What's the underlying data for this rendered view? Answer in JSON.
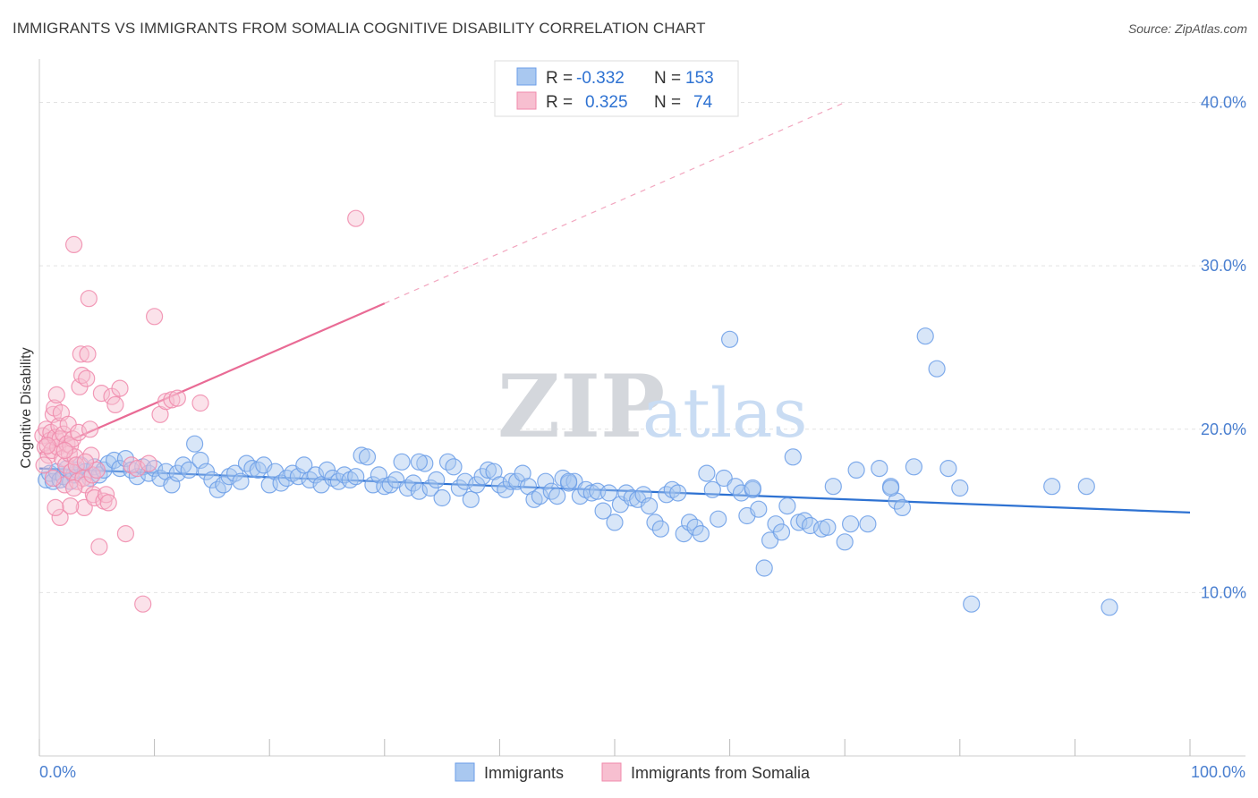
{
  "title": "IMMIGRANTS VS IMMIGRANTS FROM SOMALIA COGNITIVE DISABILITY CORRELATION CHART",
  "source": "Source: ZipAtlas.com",
  "watermark": {
    "bold": "ZIP",
    "light": "atlas"
  },
  "chart_data": {
    "type": "scatter",
    "title": "IMMIGRANTS VS IMMIGRANTS FROM SOMALIA COGNITIVE DISABILITY CORRELATION CHART",
    "xlabel": "",
    "ylabel": "Cognitive Disability",
    "xlim": [
      0,
      100
    ],
    "ylim": [
      0,
      42
    ],
    "x_tick_labels": {
      "min": "0.0%",
      "max": "100.0%"
    },
    "y_ticks": [
      {
        "value": 10,
        "label": "10.0%"
      },
      {
        "value": 20,
        "label": "20.0%"
      },
      {
        "value": 30,
        "label": "30.0%"
      },
      {
        "value": 40,
        "label": "40.0%"
      }
    ],
    "grid": true,
    "legend_position": "bottom-center",
    "stats": [
      {
        "r_label": "R =",
        "r": "-0.332",
        "n_label": "N =",
        "n": "153"
      },
      {
        "r_label": "R =",
        "r": "0.325",
        "n_label": "N =",
        "n": "74"
      }
    ],
    "series": [
      {
        "name": "Immigrants",
        "color": "#6b9ee8",
        "fill": "#a9c8f0",
        "line_color": "#2e72d2",
        "trend": {
          "x0": 0,
          "y0": 17.6,
          "x1": 100,
          "y1": 14.9
        },
        "points": [
          [
            0.6,
            16.9
          ],
          [
            0.9,
            17.3
          ],
          [
            1.2,
            16.8
          ],
          [
            1.5,
            17.4
          ],
          [
            1.8,
            16.9
          ],
          [
            2.1,
            17.1
          ],
          [
            2.4,
            17.6
          ],
          [
            2.7,
            16.8
          ],
          [
            3.0,
            17.2
          ],
          [
            3.3,
            17.5
          ],
          [
            3.6,
            17.8
          ],
          [
            4.0,
            17.4
          ],
          [
            4.4,
            17.0
          ],
          [
            4.8,
            17.7
          ],
          [
            5.2,
            17.2
          ],
          [
            5.6,
            17.5
          ],
          [
            6.0,
            17.9
          ],
          [
            6.5,
            18.1
          ],
          [
            7.0,
            17.6
          ],
          [
            7.5,
            18.2
          ],
          [
            8.0,
            17.5
          ],
          [
            8.5,
            17.1
          ],
          [
            9.0,
            17.7
          ],
          [
            9.5,
            17.3
          ],
          [
            10.0,
            17.6
          ],
          [
            10.5,
            17.0
          ],
          [
            11.0,
            17.4
          ],
          [
            11.5,
            16.6
          ],
          [
            12.0,
            17.3
          ],
          [
            12.5,
            17.8
          ],
          [
            13.0,
            17.5
          ],
          [
            13.5,
            19.1
          ],
          [
            14.0,
            18.1
          ],
          [
            14.5,
            17.4
          ],
          [
            15.0,
            16.9
          ],
          [
            15.5,
            16.3
          ],
          [
            16.0,
            16.6
          ],
          [
            16.5,
            17.1
          ],
          [
            17.0,
            17.3
          ],
          [
            17.5,
            16.8
          ],
          [
            18.0,
            17.9
          ],
          [
            18.5,
            17.6
          ],
          [
            19.0,
            17.5
          ],
          [
            19.5,
            17.8
          ],
          [
            20.0,
            16.6
          ],
          [
            20.5,
            17.4
          ],
          [
            21.0,
            16.7
          ],
          [
            21.5,
            17.0
          ],
          [
            22.0,
            17.3
          ],
          [
            22.5,
            17.1
          ],
          [
            23.0,
            17.8
          ],
          [
            23.5,
            16.9
          ],
          [
            24.0,
            17.2
          ],
          [
            24.5,
            16.6
          ],
          [
            25.0,
            17.5
          ],
          [
            25.5,
            17.0
          ],
          [
            26.0,
            16.8
          ],
          [
            26.5,
            17.2
          ],
          [
            27.0,
            16.9
          ],
          [
            27.5,
            17.1
          ],
          [
            28.0,
            18.4
          ],
          [
            28.5,
            18.3
          ],
          [
            29.0,
            16.6
          ],
          [
            29.5,
            17.2
          ],
          [
            30.0,
            16.5
          ],
          [
            30.5,
            16.6
          ],
          [
            31.0,
            16.9
          ],
          [
            31.5,
            18.0
          ],
          [
            32.0,
            16.4
          ],
          [
            32.5,
            16.7
          ],
          [
            33.0,
            16.2
          ],
          [
            33.5,
            17.9
          ],
          [
            34.0,
            16.4
          ],
          [
            34.5,
            16.9
          ],
          [
            35.0,
            15.8
          ],
          [
            35.5,
            18.0
          ],
          [
            36.0,
            17.7
          ],
          [
            36.5,
            16.4
          ],
          [
            37.0,
            16.8
          ],
          [
            37.5,
            15.7
          ],
          [
            38.0,
            16.6
          ],
          [
            38.5,
            17.1
          ],
          [
            39.0,
            17.5
          ],
          [
            39.5,
            17.4
          ],
          [
            40.0,
            16.6
          ],
          [
            40.5,
            16.3
          ],
          [
            41.0,
            16.8
          ],
          [
            41.5,
            16.8
          ],
          [
            42.0,
            17.3
          ],
          [
            42.5,
            16.5
          ],
          [
            43.0,
            15.7
          ],
          [
            43.5,
            15.9
          ],
          [
            44.0,
            16.8
          ],
          [
            44.5,
            16.2
          ],
          [
            45.0,
            15.9
          ],
          [
            45.5,
            17.0
          ],
          [
            46.0,
            16.7
          ],
          [
            46.5,
            16.8
          ],
          [
            47.0,
            15.9
          ],
          [
            47.5,
            16.3
          ],
          [
            48.0,
            16.1
          ],
          [
            48.5,
            16.2
          ],
          [
            49.0,
            15.0
          ],
          [
            49.5,
            16.1
          ],
          [
            50.0,
            14.3
          ],
          [
            50.5,
            15.4
          ],
          [
            51.0,
            16.1
          ],
          [
            51.5,
            15.8
          ],
          [
            52.0,
            15.7
          ],
          [
            52.5,
            16.0
          ],
          [
            53.0,
            15.3
          ],
          [
            53.5,
            14.3
          ],
          [
            54.0,
            13.9
          ],
          [
            54.5,
            16.0
          ],
          [
            55.0,
            16.3
          ],
          [
            55.5,
            16.1
          ],
          [
            56.0,
            13.6
          ],
          [
            56.5,
            14.3
          ],
          [
            57.0,
            14.0
          ],
          [
            57.5,
            13.6
          ],
          [
            58.0,
            17.3
          ],
          [
            58.5,
            16.3
          ],
          [
            59.0,
            14.5
          ],
          [
            59.5,
            17.0
          ],
          [
            60.0,
            25.5
          ],
          [
            60.5,
            16.5
          ],
          [
            61.0,
            16.1
          ],
          [
            61.5,
            14.7
          ],
          [
            62.0,
            16.3
          ],
          [
            62.5,
            15.1
          ],
          [
            63.0,
            11.5
          ],
          [
            63.5,
            13.2
          ],
          [
            64.0,
            14.2
          ],
          [
            64.5,
            13.7
          ],
          [
            65.0,
            15.3
          ],
          [
            65.5,
            18.3
          ],
          [
            66.0,
            14.3
          ],
          [
            66.5,
            14.4
          ],
          [
            67.0,
            14.1
          ],
          [
            68.0,
            13.9
          ],
          [
            69.0,
            16.5
          ],
          [
            70.0,
            13.1
          ],
          [
            70.5,
            14.2
          ],
          [
            71.0,
            17.5
          ],
          [
            72.0,
            14.2
          ],
          [
            73.0,
            17.6
          ],
          [
            74.0,
            16.5
          ],
          [
            74.5,
            15.6
          ],
          [
            75.0,
            15.2
          ],
          [
            76.0,
            17.7
          ],
          [
            77.0,
            25.7
          ],
          [
            78.0,
            23.7
          ],
          [
            79.0,
            17.6
          ],
          [
            80.0,
            16.4
          ],
          [
            81.0,
            9.3
          ],
          [
            88.0,
            16.5
          ],
          [
            91.0,
            16.5
          ],
          [
            93.0,
            9.1
          ],
          [
            74.0,
            16.4
          ],
          [
            68.5,
            14.0
          ],
          [
            62.0,
            16.4
          ],
          [
            46.0,
            16.8
          ],
          [
            33.0,
            18.0
          ]
        ]
      },
      {
        "name": "Immigrants from Somalia",
        "color": "#f08aab",
        "fill": "#f7bfd0",
        "line_color": "#e96b95",
        "trend": {
          "x0": 0,
          "y0": 18.5,
          "x1": 30,
          "y1": 27.7,
          "dash_to": {
            "x": 70,
            "y": 40
          }
        },
        "points": [
          [
            0.3,
            19.6
          ],
          [
            0.5,
            18.9
          ],
          [
            0.6,
            20.0
          ],
          [
            0.8,
            18.4
          ],
          [
            0.9,
            19.3
          ],
          [
            1.0,
            19.8
          ],
          [
            1.1,
            18.7
          ],
          [
            1.2,
            20.9
          ],
          [
            1.3,
            21.3
          ],
          [
            1.4,
            19.5
          ],
          [
            1.5,
            22.1
          ],
          [
            1.6,
            18.9
          ],
          [
            1.7,
            20.2
          ],
          [
            1.8,
            19.4
          ],
          [
            1.9,
            21.0
          ],
          [
            2.0,
            18.2
          ],
          [
            2.1,
            19.7
          ],
          [
            2.2,
            16.6
          ],
          [
            2.3,
            17.8
          ],
          [
            2.4,
            19.1
          ],
          [
            2.5,
            20.3
          ],
          [
            2.6,
            18.5
          ],
          [
            2.7,
            19.0
          ],
          [
            2.8,
            17.4
          ],
          [
            2.9,
            19.4
          ],
          [
            3.0,
            31.3
          ],
          [
            3.1,
            18.3
          ],
          [
            3.2,
            17.8
          ],
          [
            3.3,
            16.8
          ],
          [
            3.4,
            19.8
          ],
          [
            3.5,
            22.6
          ],
          [
            3.6,
            24.6
          ],
          [
            3.7,
            23.3
          ],
          [
            3.8,
            17.0
          ],
          [
            3.9,
            15.2
          ],
          [
            4.0,
            16.6
          ],
          [
            4.1,
            23.1
          ],
          [
            4.2,
            24.6
          ],
          [
            4.3,
            28.0
          ],
          [
            4.4,
            20.0
          ],
          [
            4.5,
            18.4
          ],
          [
            4.6,
            17.2
          ],
          [
            4.7,
            16.0
          ],
          [
            4.8,
            15.8
          ],
          [
            5.0,
            17.5
          ],
          [
            5.2,
            12.8
          ],
          [
            5.4,
            22.2
          ],
          [
            5.6,
            15.6
          ],
          [
            5.8,
            16.0
          ],
          [
            6.0,
            15.5
          ],
          [
            6.3,
            22.0
          ],
          [
            6.6,
            21.5
          ],
          [
            7.0,
            22.5
          ],
          [
            7.5,
            13.6
          ],
          [
            8.0,
            17.8
          ],
          [
            8.5,
            17.6
          ],
          [
            9.0,
            9.3
          ],
          [
            9.5,
            17.9
          ],
          [
            10.0,
            26.9
          ],
          [
            10.5,
            20.9
          ],
          [
            11.0,
            21.7
          ],
          [
            11.5,
            21.8
          ],
          [
            12.0,
            21.9
          ],
          [
            14.0,
            21.6
          ],
          [
            27.5,
            32.9
          ],
          [
            1.2,
            17.0
          ],
          [
            1.8,
            14.6
          ],
          [
            2.7,
            15.3
          ],
          [
            3.0,
            16.4
          ],
          [
            4.0,
            18.0
          ],
          [
            0.4,
            17.8
          ],
          [
            0.7,
            19.0
          ],
          [
            1.4,
            15.2
          ],
          [
            2.2,
            18.7
          ]
        ]
      }
    ]
  }
}
